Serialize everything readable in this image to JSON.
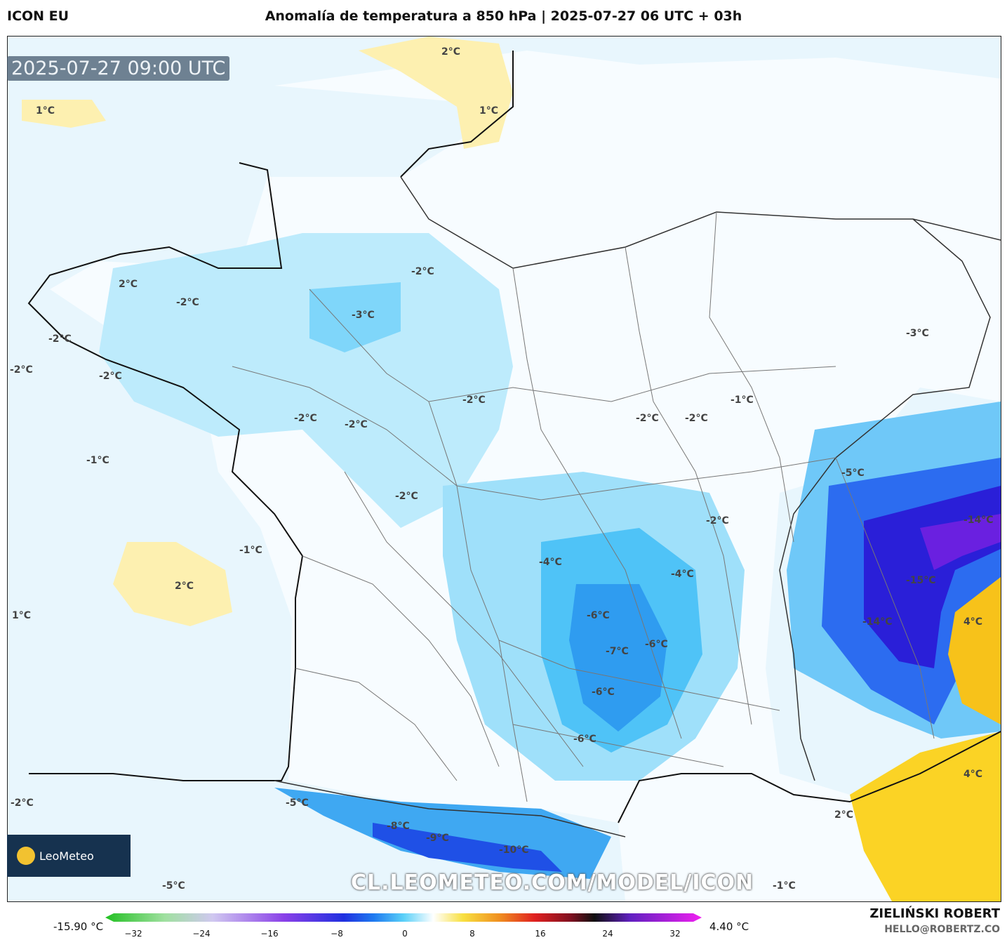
{
  "header": {
    "model": "ICON EU",
    "title": "Anomalía de temperatura a 850 hPa | 2025-07-27 06 UTC + 03h"
  },
  "map": {
    "valid_time": "2025-07-27 09:00 UTC",
    "watermark": "CL.LEOMETEO.COM/MODEL/ICON",
    "logo_text": "LeoMeteo",
    "labels": [
      {
        "text": "2°C"
      },
      {
        "text": "1°C"
      },
      {
        "text": "1°C"
      },
      {
        "text": "2°C"
      },
      {
        "text": "-2°C"
      },
      {
        "text": "-2°C"
      },
      {
        "text": "-3°C"
      },
      {
        "text": "-2°C"
      },
      {
        "text": "-2°C"
      },
      {
        "text": "-2°C"
      },
      {
        "text": "-2°C"
      },
      {
        "text": "-2°C"
      },
      {
        "text": "-1°C"
      },
      {
        "text": "-2°C"
      },
      {
        "text": "-2°C"
      },
      {
        "text": "-1°C"
      },
      {
        "text": "-3°C"
      },
      {
        "text": "-2°C"
      },
      {
        "text": "-5°C"
      },
      {
        "text": "-1°C"
      },
      {
        "text": "2°C"
      },
      {
        "text": "1°C"
      },
      {
        "text": "-2°C"
      },
      {
        "text": "-4°C"
      },
      {
        "text": "-4°C"
      },
      {
        "text": "-14°C"
      },
      {
        "text": "-15°C"
      },
      {
        "text": "-6°C"
      },
      {
        "text": "-7°C"
      },
      {
        "text": "-6°C"
      },
      {
        "text": "-14°C"
      },
      {
        "text": "4°C"
      },
      {
        "text": "-6°C"
      },
      {
        "text": "-6°C"
      },
      {
        "text": "4°C"
      },
      {
        "text": "-2°C"
      },
      {
        "text": "-5°C"
      },
      {
        "text": "-8°C"
      },
      {
        "text": "-9°C"
      },
      {
        "text": "-10°C"
      },
      {
        "text": "2°C"
      },
      {
        "text": "-5°C"
      },
      {
        "text": "-1°C"
      },
      {
        "text": "-2°C"
      }
    ]
  },
  "colorbar": {
    "min_label": "-15.90 °C",
    "max_label": "4.40 °C",
    "ticks": [
      "−32",
      "−24",
      "−16",
      "−8",
      "0",
      "8",
      "16",
      "24",
      "32"
    ]
  },
  "footer": {
    "author": "ZIELIŃSKI ROBERT",
    "email": "HELLO@ROBERTZ.CO"
  }
}
